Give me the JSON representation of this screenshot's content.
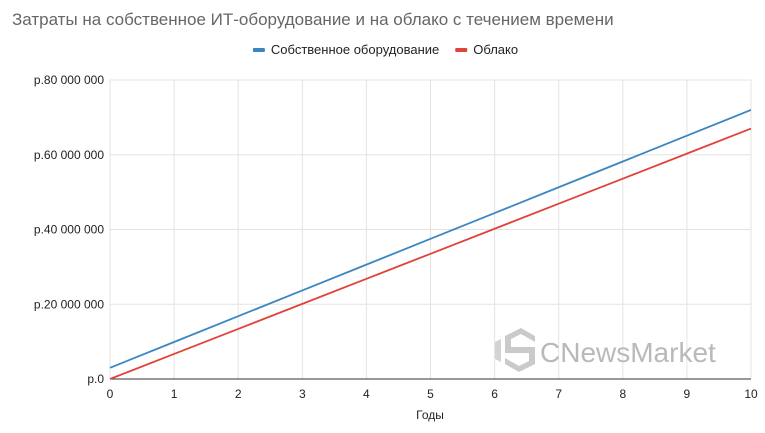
{
  "chart_data": {
    "type": "line",
    "title": "Затраты на собственное ИТ-оборудование и на облако с течением времени",
    "xlabel": "Годы",
    "ylabel": "",
    "x": [
      0,
      1,
      2,
      3,
      4,
      5,
      6,
      7,
      8,
      9,
      10
    ],
    "xlim": [
      0,
      10
    ],
    "ylim": [
      0,
      80000000
    ],
    "yticks": [
      0,
      20000000,
      40000000,
      60000000,
      80000000
    ],
    "ytick_labels": [
      "р.0",
      "р.20 000 000",
      "р.40 000 000",
      "р.60 000 000",
      "р.80 000 000"
    ],
    "grid": true,
    "legend_position": "top-center",
    "series": [
      {
        "name": "Собственное оборудование",
        "color": "#3a86c3",
        "values": [
          3000000,
          9900000,
          16800000,
          23700000,
          30600000,
          37500000,
          44400000,
          51300000,
          58200000,
          65100000,
          72000000
        ]
      },
      {
        "name": "Облако",
        "color": "#e0433a",
        "values": [
          0,
          6700000,
          13400000,
          20100000,
          26800000,
          33500000,
          40200000,
          46900000,
          53600000,
          60300000,
          67000000
        ]
      }
    ]
  },
  "watermark": {
    "text": "CNewsMarket",
    "color": "#b9b9b9",
    "icon": "cnews-logo-icon"
  }
}
